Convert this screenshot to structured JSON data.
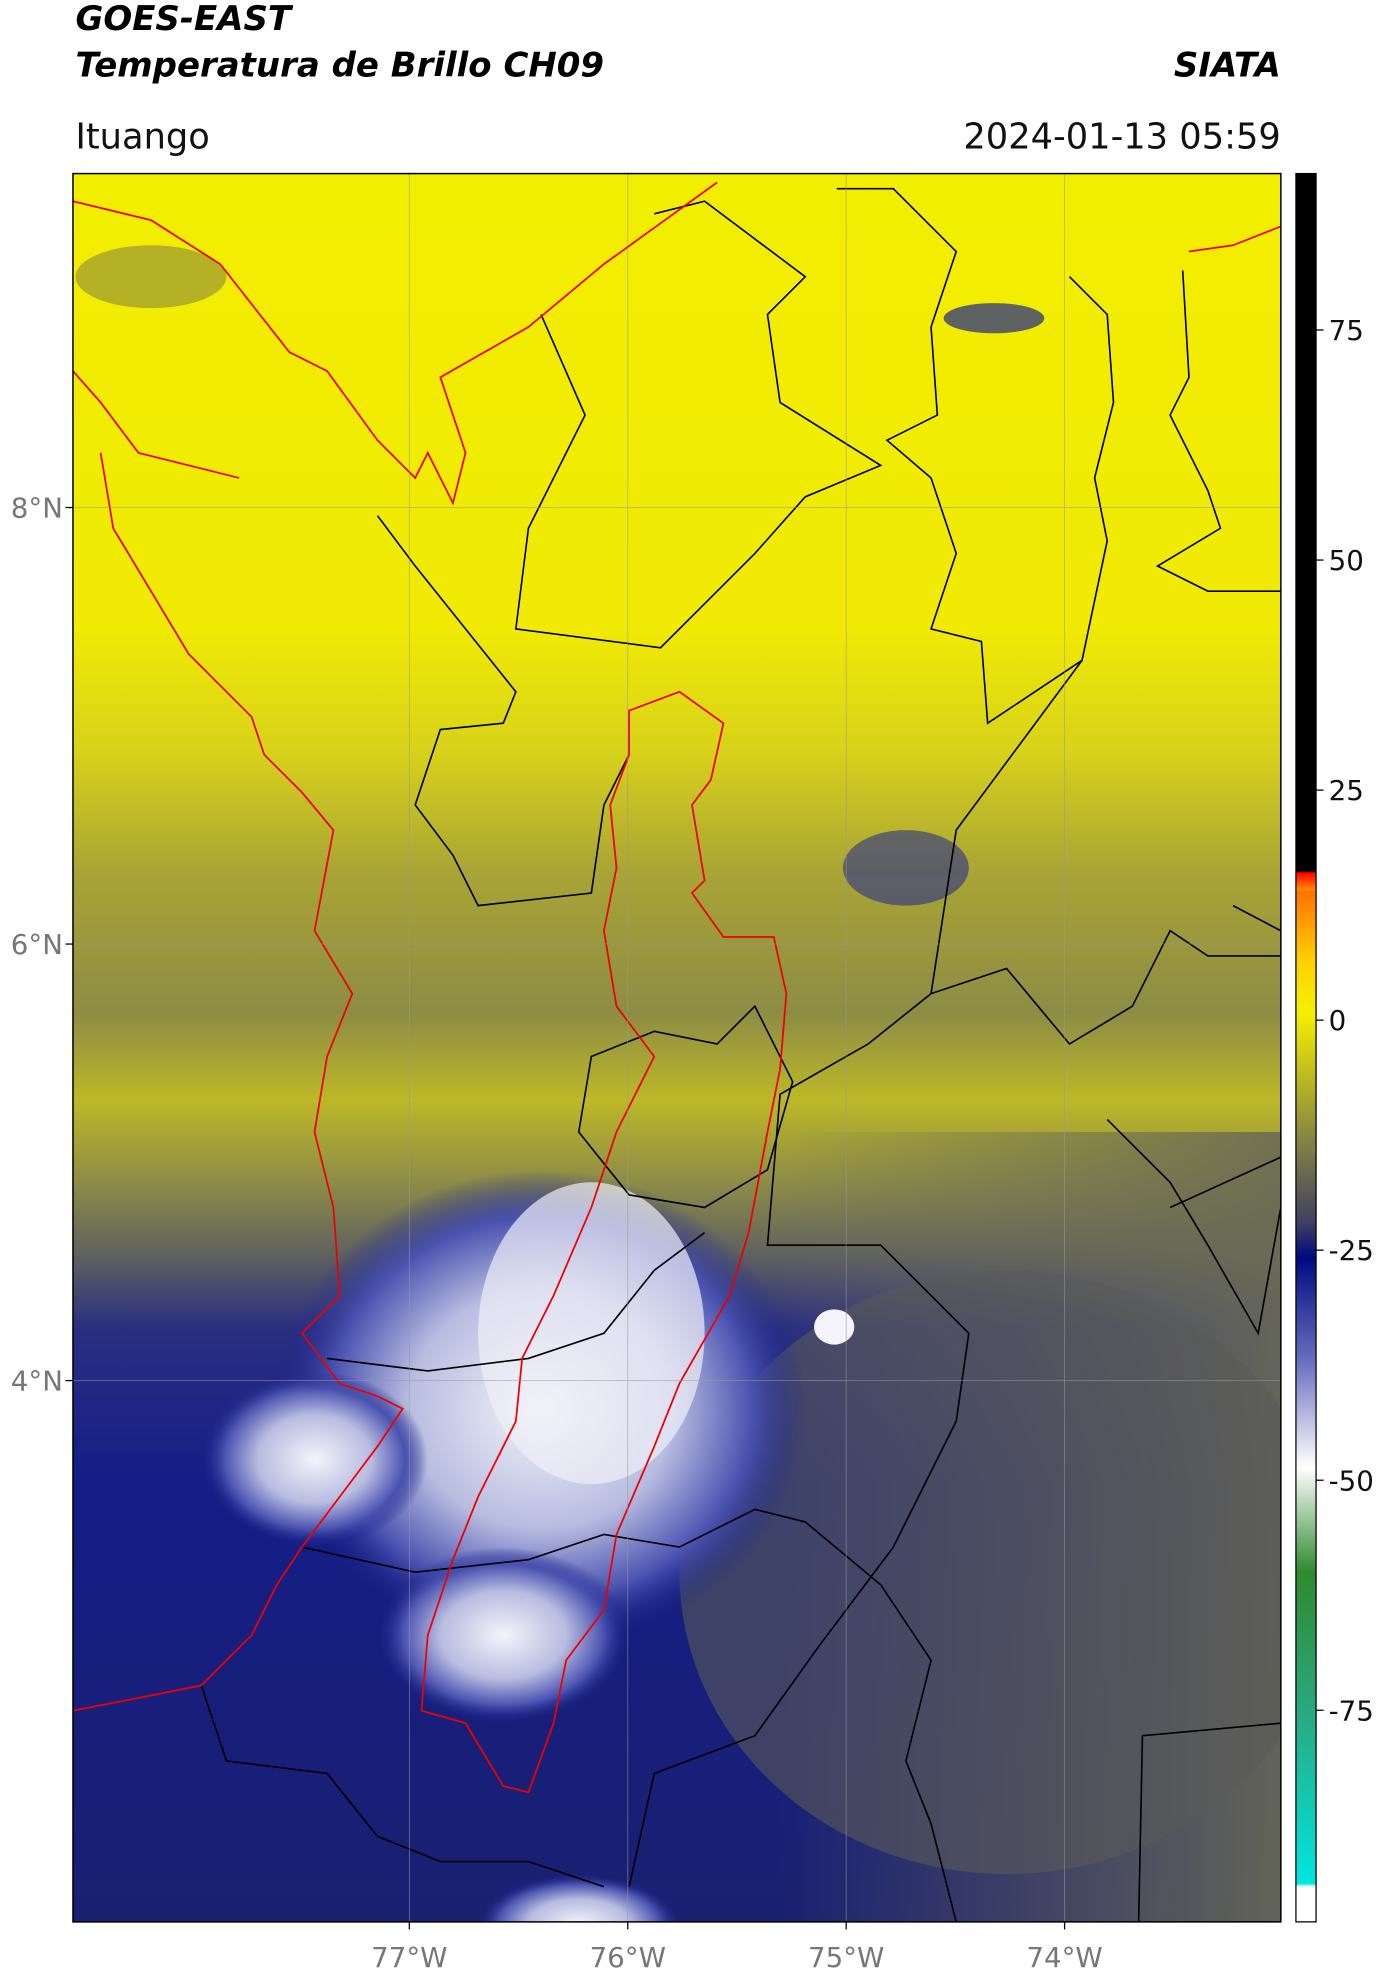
{
  "header": {
    "title": "GOES-EAST",
    "subtitle": "Temperatura de Brillo CH09",
    "source": "SIATA",
    "location": "Ituango",
    "datetime": "2024-01-13 05:59"
  },
  "map": {
    "xlim": [
      -78.54,
      -73.01
    ],
    "ylim": [
      1.52,
      9.53
    ],
    "xticks": [
      {
        "value": -77,
        "label": "77°W"
      },
      {
        "value": -76,
        "label": "76°W"
      },
      {
        "value": -75,
        "label": "75°W"
      },
      {
        "value": -74,
        "label": "74°W"
      }
    ],
    "yticks": [
      {
        "value": 8,
        "label": "8°N"
      },
      {
        "value": 6,
        "label": "6°N"
      },
      {
        "value": 4,
        "label": "4°N"
      }
    ],
    "grid": true
  },
  "colorbar": {
    "lim": [
      -98,
      92
    ],
    "ticks": [
      75,
      50,
      25,
      0,
      -25,
      -50,
      -75
    ]
  }
}
